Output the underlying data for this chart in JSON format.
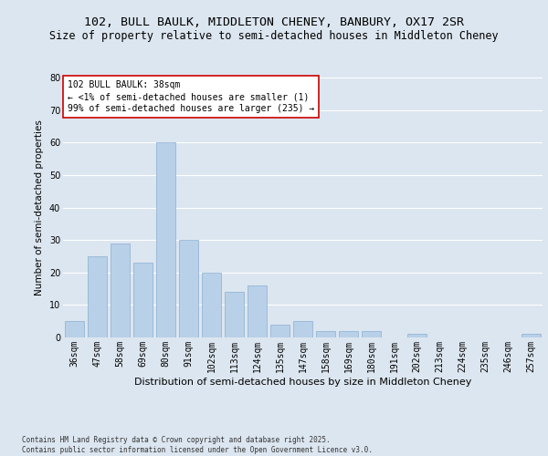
{
  "title1": "102, BULL BAULK, MIDDLETON CHENEY, BANBURY, OX17 2SR",
  "title2": "Size of property relative to semi-detached houses in Middleton Cheney",
  "xlabel": "Distribution of semi-detached houses by size in Middleton Cheney",
  "ylabel": "Number of semi-detached properties",
  "categories": [
    "36sqm",
    "47sqm",
    "58sqm",
    "69sqm",
    "80sqm",
    "91sqm",
    "102sqm",
    "113sqm",
    "124sqm",
    "135sqm",
    "147sqm",
    "158sqm",
    "169sqm",
    "180sqm",
    "191sqm",
    "202sqm",
    "213sqm",
    "224sqm",
    "235sqm",
    "246sqm",
    "257sqm"
  ],
  "values": [
    5,
    25,
    29,
    23,
    60,
    30,
    20,
    14,
    16,
    4,
    5,
    2,
    2,
    2,
    0,
    1,
    0,
    0,
    0,
    0,
    1
  ],
  "bar_color": "#b8d0e8",
  "bar_edge_color": "#8ab0d0",
  "annotation_title": "102 BULL BAULK: 38sqm",
  "annotation_line2": "← <1% of semi-detached houses are smaller (1)",
  "annotation_line3": "99% of semi-detached houses are larger (235) →",
  "annotation_box_color": "#ffffff",
  "annotation_edge_color": "#cc0000",
  "background_color": "#dce6f0",
  "plot_bg_color": "#dce6f0",
  "grid_color": "#ffffff",
  "ylim": [
    0,
    80
  ],
  "yticks": [
    0,
    10,
    20,
    30,
    40,
    50,
    60,
    70,
    80
  ],
  "footer": "Contains HM Land Registry data © Crown copyright and database right 2025.\nContains public sector information licensed under the Open Government Licence v3.0.",
  "title1_fontsize": 9.5,
  "title2_fontsize": 8.5,
  "xlabel_fontsize": 8,
  "ylabel_fontsize": 7.5,
  "tick_fontsize": 7,
  "annotation_fontsize": 7,
  "footer_fontsize": 5.5
}
